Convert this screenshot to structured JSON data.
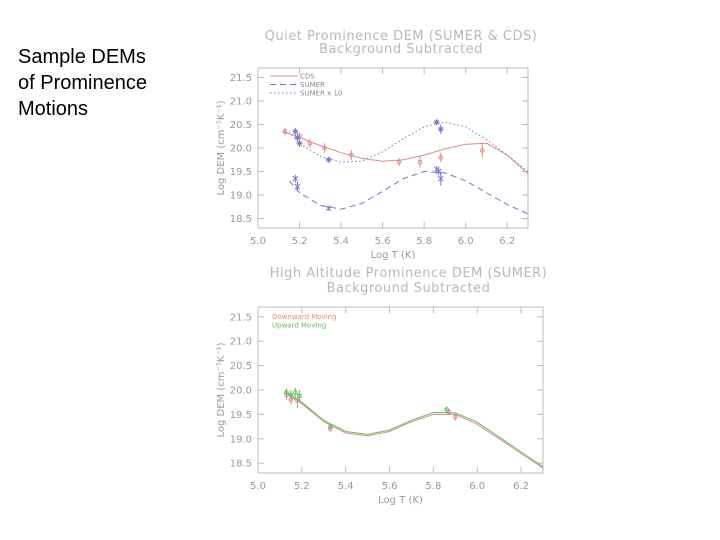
{
  "slide": {
    "title": "Sample DEMs\nof Prominence\nMotions"
  },
  "chart_data": [
    {
      "type": "line",
      "title": "Quiet Prominence DEM (SUMER & CDS)",
      "subtitle": "Background Subtracted",
      "xlabel": "Log T (K)",
      "ylabel": "Log DEM (cm⁻⁵K⁻¹)",
      "xlim": [
        5.0,
        6.3
      ],
      "ylim": [
        18.3,
        21.7
      ],
      "xticks": [
        5.0,
        5.2,
        5.4,
        5.6,
        5.8,
        6.0,
        6.2
      ],
      "yticks": [
        18.5,
        19.0,
        19.5,
        20.0,
        20.5,
        21.0,
        21.5
      ],
      "xtick_labels": [
        "5.0",
        "5.2",
        "5.4",
        "5.6",
        "5.8",
        "6.0",
        "6.2"
      ],
      "ytick_labels": [
        "18.5",
        "19.0",
        "19.5",
        "20.0",
        "20.5",
        "21.0",
        "21.5"
      ],
      "legend_position": "top-left",
      "series": [
        {
          "name": "CDS",
          "color": "#e08a8a",
          "line": "solid",
          "marker": "circle",
          "curve_x": [
            5.12,
            5.2,
            5.3,
            5.4,
            5.5,
            5.6,
            5.7,
            5.8,
            5.9,
            6.0,
            6.1,
            6.2,
            6.3
          ],
          "curve_y": [
            20.35,
            20.22,
            20.05,
            19.9,
            19.78,
            19.72,
            19.75,
            19.85,
            19.98,
            20.08,
            20.1,
            19.85,
            19.45
          ],
          "x": [
            5.13,
            5.2,
            5.25,
            5.32,
            5.45,
            5.68,
            5.78,
            5.88,
            6.08
          ],
          "y": [
            20.35,
            20.25,
            20.1,
            20.0,
            19.85,
            19.7,
            19.7,
            19.8,
            19.95
          ],
          "err": [
            0.08,
            0.08,
            0.1,
            0.1,
            0.1,
            0.08,
            0.12,
            0.1,
            0.15
          ]
        },
        {
          "name": "SUMER",
          "color": "#7777cc",
          "line": "dashed",
          "marker": "cross",
          "curve_x": [
            5.15,
            5.2,
            5.3,
            5.4,
            5.5,
            5.6,
            5.7,
            5.8,
            5.9,
            6.0,
            6.1,
            6.2,
            6.3
          ],
          "curve_y": [
            19.3,
            19.05,
            18.78,
            18.7,
            18.82,
            19.08,
            19.35,
            19.5,
            19.47,
            19.3,
            19.05,
            18.8,
            18.6
          ],
          "x": [
            5.18,
            5.19,
            5.34,
            5.86,
            5.87,
            5.88
          ],
          "y": [
            19.35,
            19.18,
            18.72,
            19.55,
            19.5,
            19.35
          ],
          "err": [
            0.08,
            0.1,
            0.05,
            0.06,
            0.08,
            0.15
          ]
        },
        {
          "name": "SUMER x 10",
          "color": "#7777cc",
          "line": "dotted",
          "marker": "star",
          "curve_x": [
            5.15,
            5.2,
            5.3,
            5.4,
            5.5,
            5.6,
            5.7,
            5.8,
            5.9,
            6.0,
            6.1,
            6.2,
            6.3
          ],
          "curve_y": [
            20.35,
            20.1,
            19.82,
            19.7,
            19.72,
            19.92,
            20.2,
            20.45,
            20.55,
            20.45,
            20.18,
            19.85,
            19.5
          ],
          "x": [
            5.18,
            5.19,
            5.2,
            5.34,
            5.86,
            5.88
          ],
          "y": [
            20.35,
            20.22,
            20.1,
            19.75,
            20.55,
            20.4
          ],
          "err": [
            0.08,
            0.1,
            0.08,
            0.06,
            0.06,
            0.1
          ]
        }
      ]
    },
    {
      "type": "line",
      "title": "High Altitude Prominence DEM (SUMER)",
      "subtitle": "Background Subtracted",
      "xlabel": "Log T (K)",
      "ylabel": "Log DEM (cm⁻⁵K⁻¹)",
      "xlim": [
        5.0,
        6.3
      ],
      "ylim": [
        18.3,
        21.7
      ],
      "xticks": [
        5.0,
        5.2,
        5.4,
        5.6,
        5.8,
        6.0,
        6.2
      ],
      "yticks": [
        18.5,
        19.0,
        19.5,
        20.0,
        20.5,
        21.0,
        21.5
      ],
      "xtick_labels": [
        "5.0",
        "5.2",
        "5.4",
        "5.6",
        "5.8",
        "6.0",
        "6.2"
      ],
      "ytick_labels": [
        "18.5",
        "19.0",
        "19.5",
        "20.0",
        "20.5",
        "21.0",
        "21.5"
      ],
      "legend_position": "top-left",
      "series": [
        {
          "name": "Downward Moving",
          "color": "#e08a8a",
          "line": "solid",
          "marker": "circle",
          "curve_x": [
            5.12,
            5.2,
            5.3,
            5.4,
            5.5,
            5.6,
            5.7,
            5.8,
            5.9,
            6.0,
            6.1,
            6.2,
            6.3
          ],
          "curve_y": [
            19.95,
            19.72,
            19.35,
            19.12,
            19.06,
            19.15,
            19.35,
            19.5,
            19.5,
            19.3,
            19.0,
            18.7,
            18.4
          ],
          "x": [
            5.13,
            5.15,
            5.18,
            5.33,
            5.87,
            5.9
          ],
          "y": [
            19.9,
            19.8,
            19.78,
            19.2,
            19.55,
            19.45
          ],
          "err": [
            0.1,
            0.1,
            0.15,
            0.05,
            0.06,
            0.08
          ]
        },
        {
          "name": "Upward Moving",
          "color": "#66bb66",
          "line": "solid",
          "marker": "circle",
          "curve_x": [
            5.12,
            5.2,
            5.3,
            5.4,
            5.5,
            5.6,
            5.7,
            5.8,
            5.9,
            6.0,
            6.1,
            6.2,
            6.3
          ],
          "curve_y": [
            19.98,
            19.75,
            19.38,
            19.15,
            19.09,
            19.18,
            19.38,
            19.54,
            19.53,
            19.34,
            19.04,
            18.73,
            18.43
          ],
          "x": [
            5.13,
            5.15,
            5.17,
            5.19,
            5.33,
            5.86
          ],
          "y": [
            19.95,
            19.9,
            19.95,
            19.88,
            19.25,
            19.6
          ],
          "err": [
            0.08,
            0.1,
            0.1,
            0.12,
            0.05,
            0.06
          ]
        }
      ]
    }
  ]
}
